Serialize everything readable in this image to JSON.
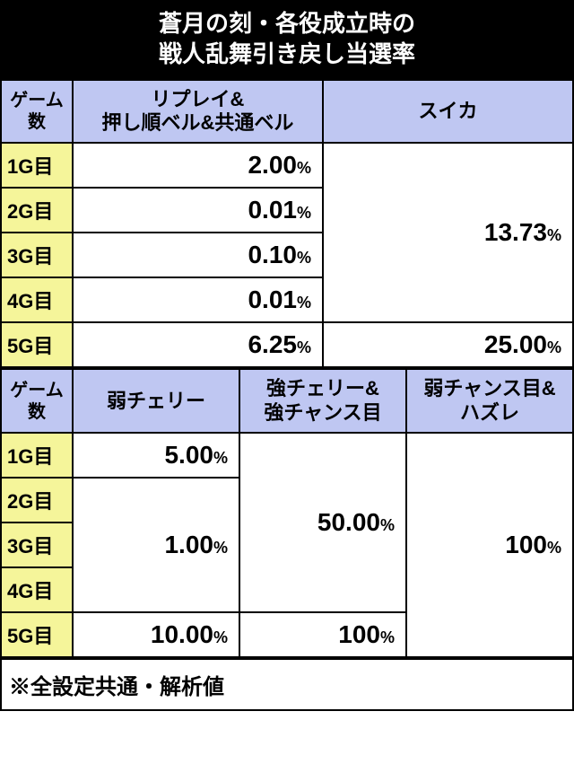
{
  "title_line1": "蒼月の刻・各役成立時の",
  "title_line2": "戦人乱舞引き戻し当選率",
  "colors": {
    "title_bg": "#000000",
    "title_fg": "#ffffff",
    "header_bg": "#bfc7f2",
    "rowlabel_bg": "#f5f59a",
    "cell_bg": "#ffffff",
    "border": "#000000"
  },
  "table1": {
    "game_header": "ゲーム\n数",
    "columns": [
      "リプレイ&\n押し順ベル&共通ベル",
      "スイカ"
    ],
    "rows": [
      "1G目",
      "2G目",
      "3G目",
      "4G目",
      "5G目"
    ],
    "col1_values": [
      "2.00",
      "0.01",
      "0.10",
      "0.01",
      "6.25"
    ],
    "col2_merged_value": "13.73",
    "col2_row5_value": "25.00",
    "pct_label": "%"
  },
  "table2": {
    "game_header": "ゲーム\n数",
    "columns": [
      "弱チェリー",
      "強チェリー&\n強チャンス目",
      "弱チャンス目&\nハズレ"
    ],
    "rows": [
      "1G目",
      "2G目",
      "3G目",
      "4G目",
      "5G目"
    ],
    "col1_row1": "5.00",
    "col1_merged_234": "1.00",
    "col1_row5": "10.00",
    "col2_merged_1to4": "50.00",
    "col2_row5": "100",
    "col3_merged_all": "100",
    "pct_label": "%"
  },
  "footer": "※全設定共通・解析値"
}
